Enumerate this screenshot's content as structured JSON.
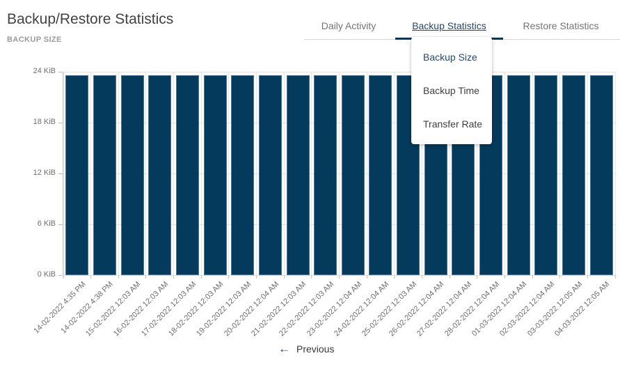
{
  "header": {
    "title": "Backup/Restore Statistics",
    "subtitle": "BACKUP SIZE"
  },
  "tabs": [
    {
      "label": "Daily Activity",
      "active": false
    },
    {
      "label": "Backup Statistics",
      "active": true
    },
    {
      "label": "Restore Statistics",
      "active": false
    }
  ],
  "dropdown": {
    "items": [
      {
        "label": "Backup Size",
        "selected": true
      },
      {
        "label": "Backup Time",
        "selected": false
      },
      {
        "label": "Transfer Rate",
        "selected": false
      }
    ]
  },
  "chart_data": {
    "type": "bar",
    "title": "BACKUP SIZE",
    "unit": "KiB",
    "categories": [
      "14-02-2022 4:35 PM",
      "14-02-2022 4:38 PM",
      "15-02-2022 12:03 AM",
      "16-02-2022 12:03 AM",
      "17-02-2022 12:03 AM",
      "18-02-2022 12:03 AM",
      "19-02-2022 12:03 AM",
      "20-02-2022 12:04 AM",
      "21-02-2022 12:03 AM",
      "22-02-2022 12:03 AM",
      "23-02-2022 12:04 AM",
      "24-02-2022 12:04 AM",
      "25-02-2022 12:03 AM",
      "26-02-2022 12:04 AM",
      "27-02-2022 12:04 AM",
      "28-02-2022 12:04 AM",
      "01-03-2022 12:04 AM",
      "02-03-2022 12:04 AM",
      "03-03-2022 12:05 AM",
      "04-03-2022 12:05 AM"
    ],
    "values": [
      23.6,
      23.6,
      23.6,
      23.6,
      23.6,
      23.6,
      23.6,
      23.6,
      23.6,
      23.6,
      23.6,
      23.6,
      23.6,
      23.6,
      23.6,
      23.6,
      23.6,
      23.6,
      23.6,
      23.6
    ],
    "ylim": [
      0,
      24
    ],
    "yticks": [
      {
        "value": 0,
        "label": "0 KiB"
      },
      {
        "value": 6,
        "label": "6 KiB"
      },
      {
        "value": 12,
        "label": "12 KiB"
      },
      {
        "value": 18,
        "label": "18 KiB"
      },
      {
        "value": 24,
        "label": "24 KiB"
      }
    ],
    "grid": true,
    "legend": "none",
    "bar_color": "#043a5b"
  },
  "pagination": {
    "previous_icon": "arrow-left",
    "previous_glyph": "←",
    "previous_label": "Previous"
  },
  "colors": {
    "accent_navy": "#103456",
    "active_tab_text": "#24476b",
    "bar_fill": "#043a5b",
    "gridline": "#e1e1e1",
    "muted_text": "#757575"
  }
}
